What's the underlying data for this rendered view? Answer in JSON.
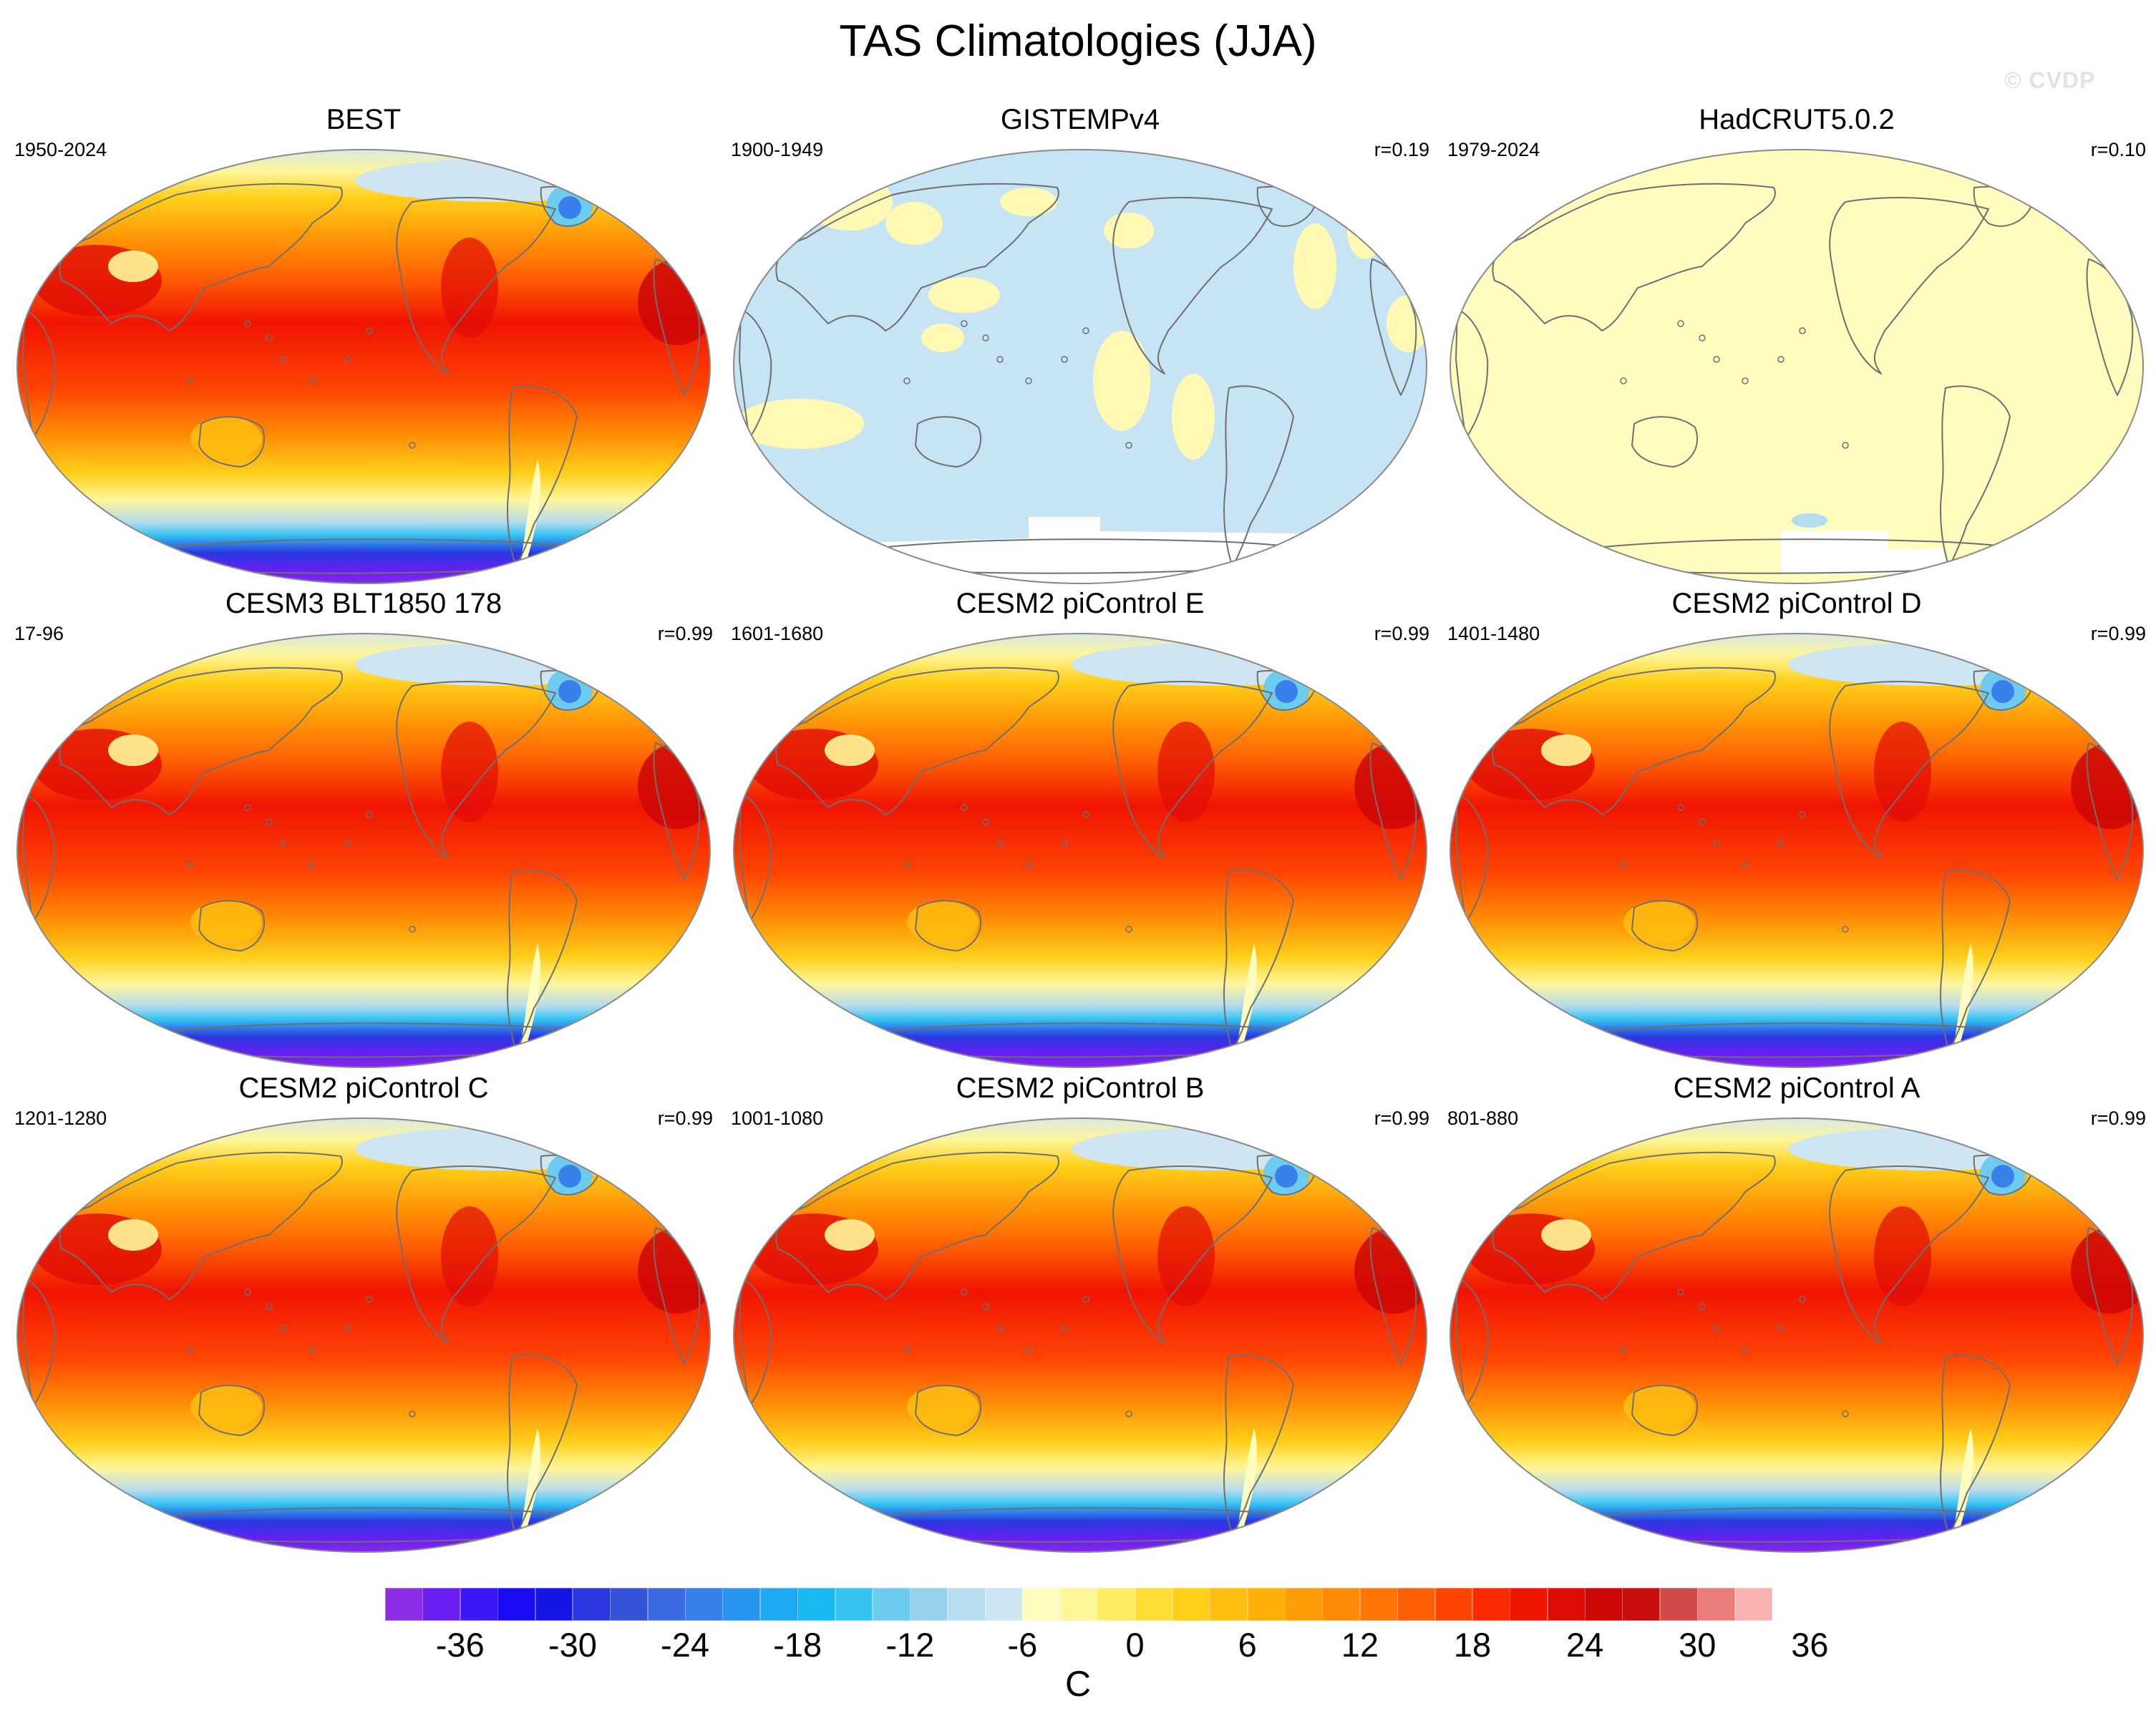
{
  "title": "TAS Climatologies (JJA)",
  "watermark": "© CVDP",
  "colorbar": {
    "labels": [
      "-36",
      "-30",
      "-24",
      "-18",
      "-12",
      "-6",
      "0",
      "6",
      "12",
      "18",
      "24",
      "30",
      "36"
    ],
    "units": "C",
    "colors": [
      "#8c2ee6",
      "#6a1ef2",
      "#3d16f7",
      "#1c0cf5",
      "#1515e8",
      "#2a37df",
      "#3553d8",
      "#3b6ae0",
      "#3a80ea",
      "#2a95f0",
      "#1ea9f3",
      "#1ab9f4",
      "#35c4f2",
      "#6ccbee",
      "#96d2ec",
      "#b6dcef",
      "#cfe6f2",
      "#fffcc0",
      "#fff69a",
      "#ffec62",
      "#ffde35",
      "#ffcf19",
      "#ffbe10",
      "#ffae0a",
      "#ff9d08",
      "#ff8a06",
      "#ff7505",
      "#ff5e04",
      "#ff4403",
      "#fb2a02",
      "#f01402",
      "#e10b06",
      "#cd0606",
      "#c90c0c",
      "#d24a4a",
      "#ea7c7c",
      "#f9b2b2"
    ]
  },
  "panels": [
    {
      "name": "BEST",
      "period": "1950-2024",
      "r": "",
      "style": "obs"
    },
    {
      "name": "GISTEMPv4",
      "period": "1900-1949",
      "r": "r=0.19",
      "style": "anom"
    },
    {
      "name": "HadCRUT5.0.2",
      "period": "1979-2024",
      "r": "r=0.10",
      "style": "flat"
    },
    {
      "name": "CESM3 BLT1850 178",
      "period": "17-96",
      "r": "r=0.99",
      "style": "model"
    },
    {
      "name": "CESM2 piControl E",
      "period": "1601-1680",
      "r": "r=0.99",
      "style": "model"
    },
    {
      "name": "CESM2 piControl D",
      "period": "1401-1480",
      "r": "r=0.99",
      "style": "model"
    },
    {
      "name": "CESM2 piControl C",
      "period": "1201-1280",
      "r": "r=0.99",
      "style": "model"
    },
    {
      "name": "CESM2 piControl B",
      "period": "1001-1080",
      "r": "r=0.99",
      "style": "model"
    },
    {
      "name": "CESM2 piControl A",
      "period": "801-880",
      "r": "r=0.99",
      "style": "model"
    }
  ]
}
